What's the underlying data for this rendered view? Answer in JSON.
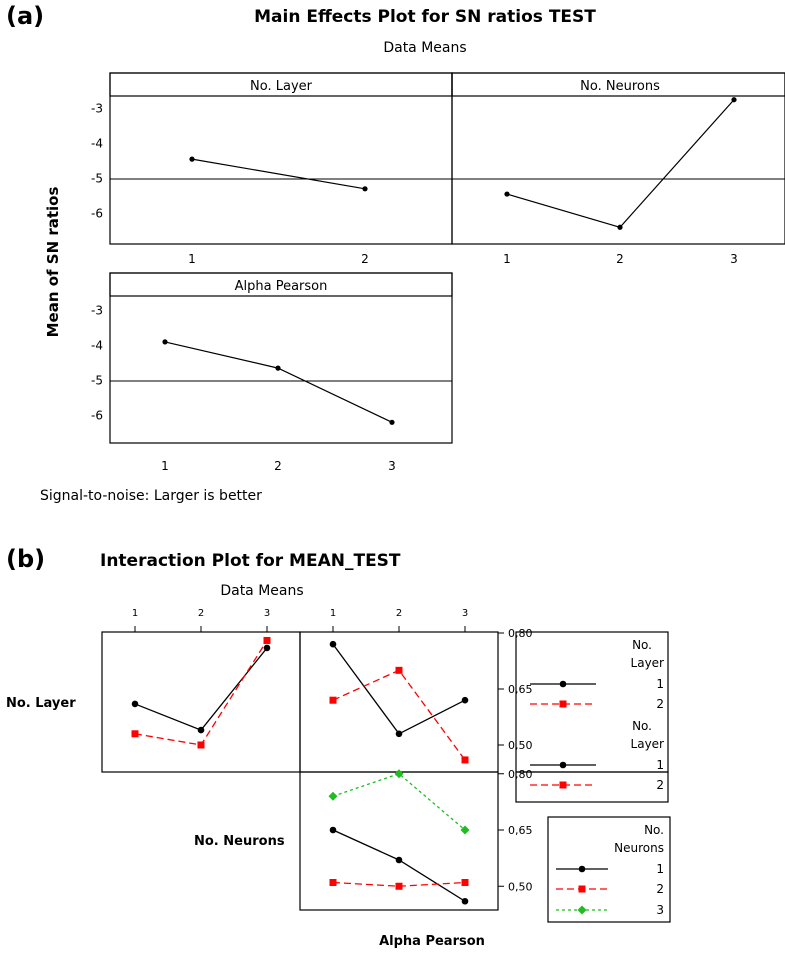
{
  "panel_a": {
    "label": "(a)",
    "title": "Main Effects Plot for SN ratios TEST",
    "subtitle": "Data Means",
    "ylabel": "Mean of SN ratios",
    "footer": "Signal-to-noise: Larger is better"
  },
  "panel_b": {
    "label": "(b)",
    "title": "Interaction Plot for MEAN_TEST",
    "subtitle": "Data Means",
    "xlabel": "Alpha Pearson",
    "row_label_1": "No. Layer",
    "row_label_2": "No. Neurons",
    "top_ticks": [
      "1",
      "2",
      "3"
    ],
    "legend_1": {
      "title_line1": "No.",
      "title_line2": "Layer",
      "entries": [
        "1",
        "2"
      ]
    },
    "legend_2": {
      "title_line1": "No.",
      "title_line2": "Layer",
      "entries": [
        "1",
        "2"
      ]
    },
    "legend_3": {
      "title_line1": "No.",
      "title_line2": "Neurons",
      "entries": [
        "1",
        "2",
        "3"
      ]
    }
  },
  "colors": {
    "series1": "#000000",
    "series2": "#ff0000",
    "series3": "#22bb22"
  },
  "chart_data": [
    {
      "type": "line",
      "title": "Main Effects Plot for SN ratios TEST",
      "subtitle": "Data Means",
      "ylabel": "Mean of SN ratios",
      "ylim": [
        -6.8,
        -2.1
      ],
      "yticks": [
        -3,
        -4,
        -5,
        -6
      ],
      "reference_line": -4.85,
      "panels": [
        {
          "name": "No. Layer",
          "x": [
            "1",
            "2"
          ],
          "values": [
            -4.45,
            -5.3
          ]
        },
        {
          "name": "No. Neurons",
          "x": [
            "1",
            "2",
            "3"
          ],
          "values": [
            -5.45,
            -6.4,
            -2.75
          ]
        },
        {
          "name": "Alpha Pearson",
          "x": [
            "1",
            "2",
            "3"
          ],
          "values": [
            -3.9,
            -4.65,
            -6.2
          ]
        }
      ]
    },
    {
      "type": "line",
      "title": "Interaction Plot for MEAN_TEST",
      "subtitle": "Data Means",
      "xlabel": "Alpha Pearson",
      "ylim": [
        0.45,
        0.85
      ],
      "yticks": [
        "0,80",
        "0,65",
        "0,50"
      ],
      "panels": [
        {
          "x": [
            "1",
            "2",
            "3"
          ],
          "series": [
            {
              "name": "1",
              "values": [
                0.61,
                0.54,
                0.76
              ]
            },
            {
              "name": "2",
              "values": [
                0.53,
                0.5,
                0.78
              ]
            }
          ]
        },
        {
          "x": [
            "1",
            "2",
            "3"
          ],
          "series": [
            {
              "name": "1",
              "values": [
                0.77,
                0.53,
                0.62
              ]
            },
            {
              "name": "2",
              "values": [
                0.62,
                0.7,
                0.46
              ]
            }
          ]
        },
        {
          "x": [
            "1",
            "2",
            "3"
          ],
          "series": [
            {
              "name": "1",
              "values": [
                0.65,
                0.57,
                0.46
              ]
            },
            {
              "name": "2",
              "values": [
                0.51,
                0.5,
                0.51
              ]
            },
            {
              "name": "3",
              "values": [
                0.74,
                0.8,
                0.65
              ]
            }
          ]
        }
      ]
    }
  ]
}
